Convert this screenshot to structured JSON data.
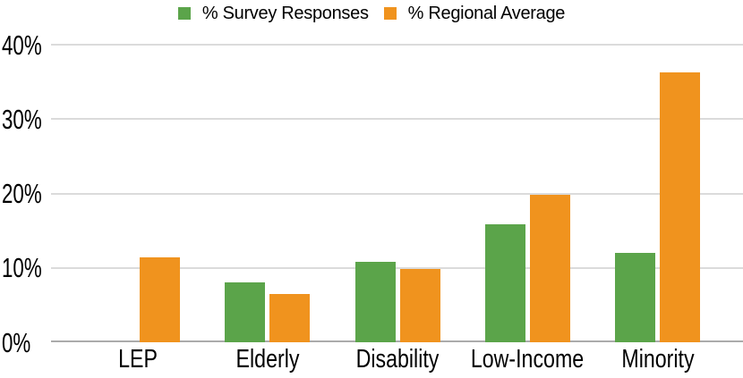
{
  "chart_data": {
    "type": "bar",
    "title": "",
    "categories": [
      "LEP",
      "Elderly",
      "Disability",
      "Low-Income",
      "Minority"
    ],
    "series": [
      {
        "name": "% Survey Responses",
        "color": "#5BA44A",
        "values": [
          0,
          8,
          10.8,
          15.9,
          12
        ]
      },
      {
        "name": "% Regional Average",
        "color": "#F0931E",
        "values": [
          11.4,
          6.5,
          9.9,
          19.8,
          36.3
        ]
      }
    ],
    "xlabel": "",
    "ylabel": "",
    "ylim": [
      0,
      40
    ],
    "yticks": [
      0,
      10,
      20,
      30,
      40
    ],
    "ytick_labels": [
      "0%",
      "10%",
      "20%",
      "30%",
      "40%"
    ],
    "grid": true,
    "legend_position": "top",
    "colors": {
      "gridline": "#DBDBDB",
      "axis_line": "#ABABAB",
      "text": "#000000",
      "background": "#FFFFFF"
    }
  }
}
